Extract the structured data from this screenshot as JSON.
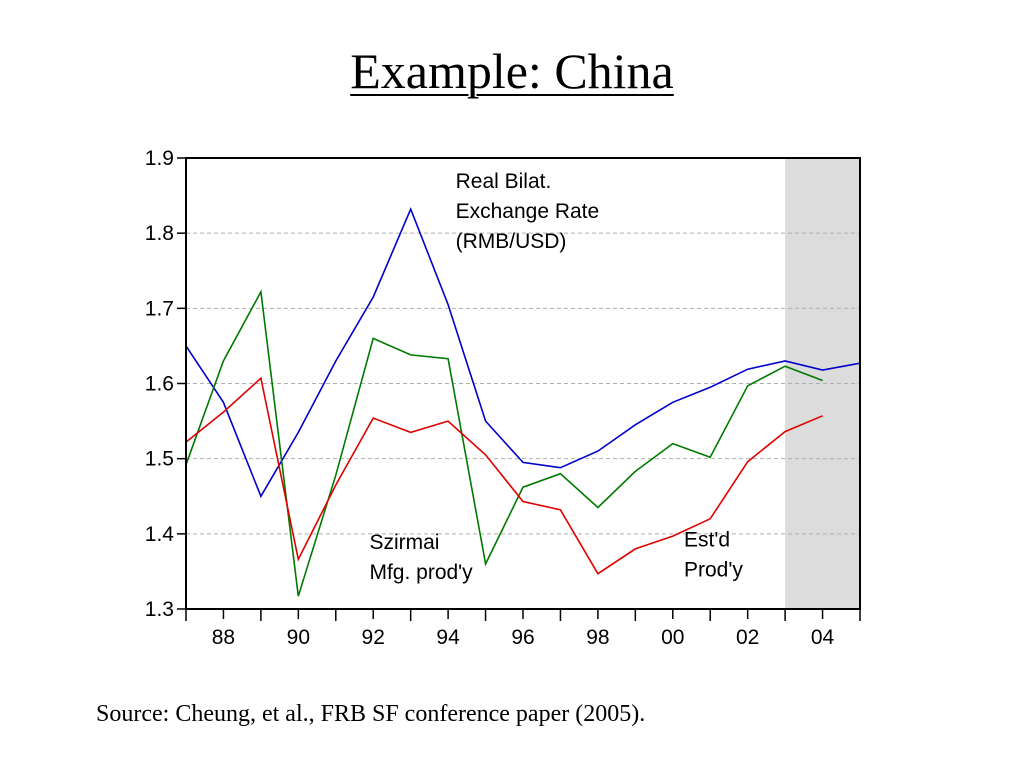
{
  "slide": {
    "title": "Example: China",
    "source": "Source: Cheung, et al., FRB SF conference paper (2005)."
  },
  "chart_data": {
    "type": "line",
    "x_tick_labels": [
      "88",
      "90",
      "92",
      "94",
      "96",
      "98",
      "00",
      "02",
      "04"
    ],
    "x_tick_years": [
      1988,
      1990,
      1992,
      1994,
      1996,
      1998,
      2000,
      2002,
      2004
    ],
    "xlim": [
      1987,
      2005
    ],
    "ylim": [
      1.3,
      1.9
    ],
    "y_ticks": [
      1.3,
      1.4,
      1.5,
      1.6,
      1.7,
      1.8,
      1.9
    ],
    "y_tick_labels": [
      "1.3",
      "1.4",
      "1.5",
      "1.6",
      "1.7",
      "1.8",
      "1.9"
    ],
    "grid": "horizontal dashed",
    "shaded_region": {
      "x_from": 2003,
      "x_to": 2005,
      "color": "#dcdcdc"
    },
    "series": [
      {
        "color": "#0000cc",
        "x": [
          1987,
          1988,
          1989,
          1990,
          1991,
          1992,
          1993,
          1994,
          1995,
          1996,
          1997,
          1998,
          1999,
          2000,
          2001,
          2002,
          2003,
          2004,
          2005
        ],
        "values": [
          1.65,
          1.575,
          1.45,
          1.535,
          1.63,
          1.715,
          1.832,
          1.705,
          1.55,
          1.495,
          1.488,
          1.51,
          1.545,
          1.575,
          1.595,
          1.619,
          1.63,
          1.618,
          1.627
        ]
      },
      {
        "color": "#007a00",
        "x": [
          1987,
          1988,
          1989,
          1990,
          1991,
          1992,
          1993,
          1994,
          1995,
          1996,
          1997,
          1998,
          1999,
          2000,
          2001,
          2002,
          2003,
          2004
        ],
        "values": [
          1.492,
          1.63,
          1.722,
          1.317,
          1.478,
          1.66,
          1.638,
          1.633,
          1.36,
          1.462,
          1.48,
          1.435,
          1.483,
          1.52,
          1.502,
          1.597,
          1.623,
          1.604
        ]
      },
      {
        "color": "#e00000",
        "x": [
          1987,
          1988,
          1989,
          1990,
          1991,
          1992,
          1993,
          1994,
          1995,
          1996,
          1997,
          1998,
          1999,
          2000,
          2001,
          2002,
          2003,
          2004
        ],
        "values": [
          1.522,
          1.562,
          1.607,
          1.366,
          1.465,
          1.554,
          1.535,
          1.55,
          1.505,
          1.443,
          1.432,
          1.347,
          1.38,
          1.397,
          1.42,
          1.496,
          1.536,
          1.557
        ]
      }
    ],
    "annotations": [
      {
        "text": [
          "Real Bilat.",
          "Exchange Rate",
          "(RMB/USD)"
        ],
        "x": 1994.2,
        "y": 1.86
      },
      {
        "text": [
          "Szirmai",
          "Mfg. prod'y"
        ],
        "x": 1991.9,
        "y": 1.38
      },
      {
        "text": [
          "Est'd",
          "Prod'y"
        ],
        "x": 2000.3,
        "y": 1.383
      }
    ]
  }
}
